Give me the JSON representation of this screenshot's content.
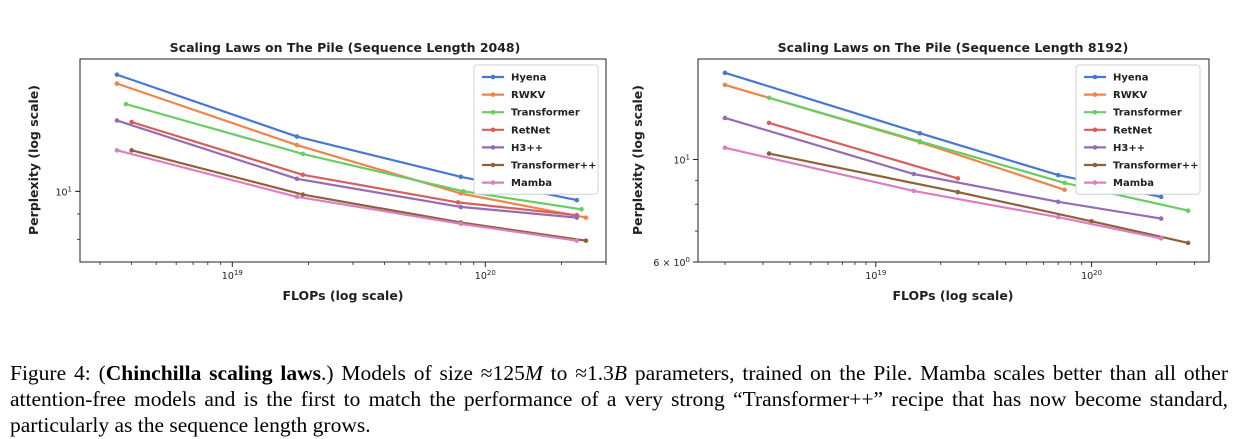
{
  "caption": {
    "prefix": "Figure 4: (",
    "bold": "Chinchilla scaling laws",
    "mid1": ".) Models of size ",
    "approx1": "≈",
    "num1": "125",
    "unit1": "M",
    "to": " to ",
    "approx2": "≈",
    "num2": "1.3",
    "unit2": "B",
    "rest": " parameters, trained on the Pile. Mamba scales better than all other attention-free models and is the first to match the performance of a very strong “Transformer++” recipe that has now become standard, particularly as the sequence length grows."
  },
  "colors": {
    "Hyena": "#4878d0",
    "RWKV": "#ee854a",
    "Transformer": "#6acc64",
    "RetNet": "#d65f5f",
    "H3++": "#956cb4",
    "Transformer++": "#8c613c",
    "Mamba": "#dc7ec0"
  },
  "chart_data": [
    {
      "type": "line",
      "title": "Scaling Laws on The Pile (Sequence Length 2048)",
      "xlabel": "FLOPs (log scale)",
      "ylabel": "Perplexity (log scale)",
      "x_scale": "log",
      "y_scale": "log",
      "xlim": [
        2.5e+18,
        3e+20
      ],
      "ylim": [
        7.2,
        18.5
      ],
      "x_ticks": [
        {
          "value": 1e+19,
          "label": "10^19"
        },
        {
          "value": 1e+20,
          "label": "10^20"
        }
      ],
      "y_ticks": [
        {
          "value": 10,
          "label": "10^1"
        }
      ],
      "legend": "top-right",
      "grid": false,
      "series": [
        {
          "name": "Hyena",
          "x": [
            3.5e+18,
            1.8e+19,
            8e+19,
            2.3e+20
          ],
          "y": [
            17.2,
            12.9,
            10.7,
            9.6
          ]
        },
        {
          "name": "RWKV",
          "x": [
            3.5e+18,
            1.8e+19,
            8e+19,
            2.5e+20
          ],
          "y": [
            16.5,
            12.4,
            9.9,
            8.85
          ]
        },
        {
          "name": "Transformer",
          "x": [
            3.8e+18,
            1.9e+19,
            8.2e+19,
            2.4e+20
          ],
          "y": [
            15.0,
            11.9,
            10.0,
            9.2
          ]
        },
        {
          "name": "RetNet",
          "x": [
            4e+18,
            1.9e+19,
            7.8e+19,
            2.3e+20
          ],
          "y": [
            13.8,
            10.8,
            9.5,
            8.95
          ]
        },
        {
          "name": "H3++",
          "x": [
            3.5e+18,
            1.8e+19,
            8e+19,
            2.3e+20
          ],
          "y": [
            13.9,
            10.6,
            9.3,
            8.85
          ]
        },
        {
          "name": "Transformer++",
          "x": [
            4e+18,
            1.9e+19,
            8e+19,
            2.5e+20
          ],
          "y": [
            12.1,
            9.85,
            8.65,
            7.95
          ]
        },
        {
          "name": "Mamba",
          "x": [
            3.5e+18,
            1.8e+19,
            8e+19,
            2.3e+20
          ],
          "y": [
            12.1,
            9.75,
            8.6,
            7.95
          ]
        }
      ]
    },
    {
      "type": "line",
      "title": "Scaling Laws on The Pile (Sequence Length 8192)",
      "xlabel": "FLOPs (log scale)",
      "ylabel": "Perplexity (log scale)",
      "x_scale": "log",
      "y_scale": "log",
      "xlim": [
        1.5e+18,
        3.5e+20
      ],
      "ylim": [
        6.0,
        16.5
      ],
      "x_ticks": [
        {
          "value": 1e+19,
          "label": "10^19"
        },
        {
          "value": 1e+20,
          "label": "10^20"
        }
      ],
      "y_ticks": [
        {
          "value": 10,
          "label": "10^1"
        },
        {
          "value": 6,
          "label": "6 × 10^0"
        }
      ],
      "legend": "top-right",
      "grid": false,
      "series": [
        {
          "name": "Hyena",
          "x": [
            2e+18,
            1.6e+19,
            7e+19,
            2.1e+20
          ],
          "y": [
            15.4,
            11.4,
            9.25,
            8.3
          ]
        },
        {
          "name": "RWKV",
          "x": [
            2e+18,
            1.6e+19,
            7.5e+19
          ],
          "y": [
            14.5,
            10.9,
            8.6
          ]
        },
        {
          "name": "Transformer",
          "x": [
            3.2e+18,
            1.6e+19,
            7.5e+19,
            2.8e+20
          ],
          "y": [
            13.6,
            10.95,
            8.9,
            7.75
          ]
        },
        {
          "name": "RetNet",
          "x": [
            3.2e+18,
            2.4e+19
          ],
          "y": [
            12.0,
            9.1
          ]
        },
        {
          "name": "H3++",
          "x": [
            2e+18,
            1.5e+19,
            7e+19,
            2.1e+20
          ],
          "y": [
            12.3,
            9.3,
            8.1,
            7.45
          ]
        },
        {
          "name": "Transformer++",
          "x": [
            3.2e+18,
            2.4e+19,
            1e+20,
            2.8e+20
          ],
          "y": [
            10.3,
            8.5,
            7.35,
            6.6
          ]
        },
        {
          "name": "Mamba",
          "x": [
            2e+18,
            1.5e+19,
            7e+19,
            2.1e+20
          ],
          "y": [
            10.6,
            8.55,
            7.5,
            6.75
          ]
        }
      ]
    }
  ]
}
